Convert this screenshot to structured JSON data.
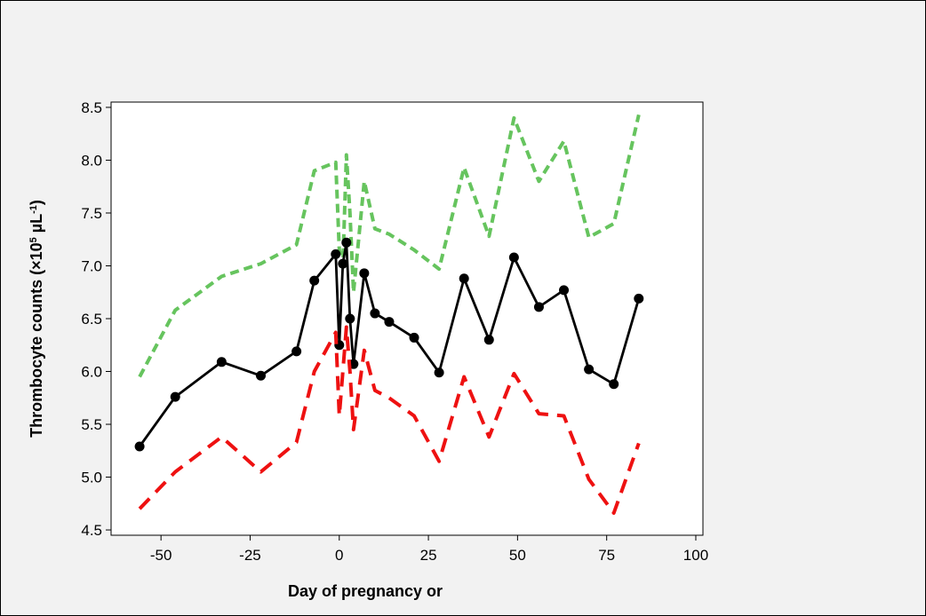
{
  "chart_data": {
    "type": "line",
    "xlabel": "Day of pregnancy or",
    "ylabel_main": "Thrombocyte counts (×10",
    "ylabel_sup1": "5",
    "ylabel_mid": " µL",
    "ylabel_sup2": "-1",
    "ylabel_end": ")",
    "xlim": [
      -64,
      102
    ],
    "ylim": [
      4.45,
      8.55
    ],
    "xticks": [
      -50,
      -25,
      0,
      25,
      50,
      75,
      100
    ],
    "yticks": [
      4.5,
      5.0,
      5.5,
      6.0,
      6.5,
      7.0,
      7.5,
      8.0,
      8.5
    ],
    "ytick_labels": [
      "4.5",
      "5.0",
      "5.5",
      "6.0",
      "6.5",
      "7.0",
      "7.5",
      "8.0",
      "8.5"
    ],
    "xtick_labels": [
      "-50",
      "-25",
      "0",
      "25",
      "50",
      "75",
      "100"
    ],
    "series": [
      {
        "color": "#66c45e",
        "style": "dashed",
        "x": [
          -56,
          -46,
          -33,
          -22,
          -12,
          -7,
          -1,
          0,
          1,
          2,
          3,
          4,
          7,
          10,
          14,
          21,
          28,
          35,
          42,
          49,
          56,
          63,
          70,
          77,
          84
        ],
        "y": [
          5.95,
          6.58,
          6.9,
          7.02,
          7.2,
          7.9,
          7.98,
          7.15,
          7.0,
          8.05,
          7.5,
          6.75,
          7.8,
          7.35,
          7.3,
          7.15,
          6.97,
          7.93,
          7.28,
          8.4,
          7.8,
          8.18,
          7.27,
          7.4,
          8.43
        ]
      },
      {
        "color": "#000000",
        "style": "solid-markers",
        "x": [
          -56,
          -46,
          -33,
          -22,
          -12,
          -7,
          -1,
          0,
          1,
          2,
          3,
          4,
          7,
          10,
          14,
          21,
          28,
          35,
          42,
          49,
          56,
          63,
          70,
          77,
          84
        ],
        "y": [
          5.29,
          5.76,
          6.09,
          5.96,
          6.19,
          6.86,
          7.11,
          6.25,
          7.02,
          7.22,
          6.5,
          6.07,
          6.93,
          6.55,
          6.47,
          6.32,
          5.99,
          6.88,
          6.3,
          7.08,
          6.61,
          6.77,
          6.02,
          5.88,
          6.69
        ]
      },
      {
        "color": "#ee1111",
        "style": "dashed",
        "x": [
          -56,
          -46,
          -33,
          -22,
          -12,
          -7,
          -1,
          0,
          1,
          2,
          3,
          4,
          7,
          10,
          14,
          21,
          28,
          35,
          42,
          49,
          56,
          63,
          70,
          77,
          84
        ],
        "y": [
          4.7,
          5.05,
          5.38,
          5.05,
          5.33,
          6.0,
          6.37,
          5.58,
          6.0,
          6.42,
          6.0,
          5.45,
          6.2,
          5.82,
          5.75,
          5.58,
          5.15,
          5.95,
          5.38,
          5.98,
          5.6,
          5.58,
          4.98,
          4.66,
          5.32
        ]
      }
    ]
  }
}
